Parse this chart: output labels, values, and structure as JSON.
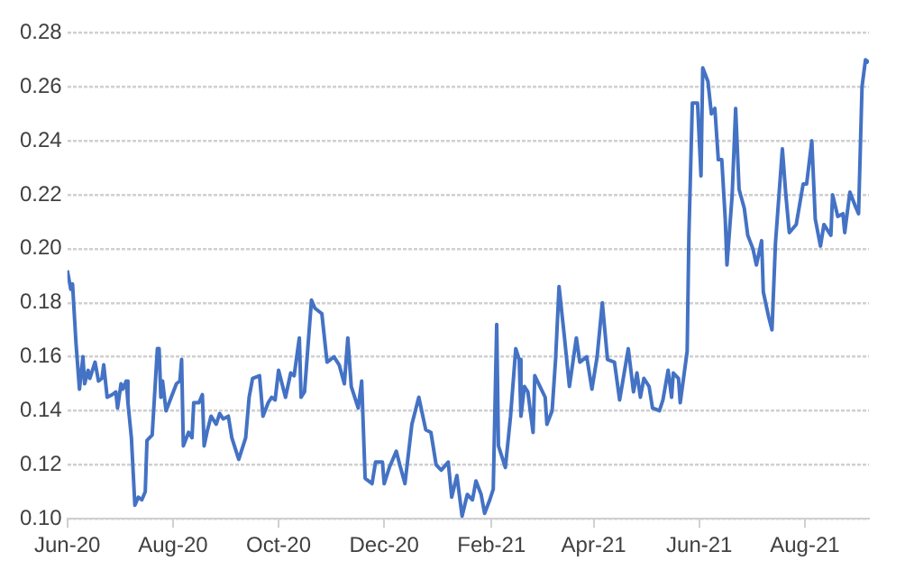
{
  "chart_data": {
    "type": "line",
    "grid": "y",
    "marker": "none",
    "line_style": "solid",
    "legend": false,
    "xlim": [
      "2020-06-01",
      "2021-09-07"
    ],
    "xticks": [
      {
        "value": "2020-06-01",
        "label": "Jun-20"
      },
      {
        "value": "2020-08-01",
        "label": "Aug-20"
      },
      {
        "value": "2020-10-01",
        "label": "Oct-20"
      },
      {
        "value": "2020-12-01",
        "label": "Dec-20"
      },
      {
        "value": "2021-02-01",
        "label": "Feb-21"
      },
      {
        "value": "2021-04-01",
        "label": "Apr-21"
      },
      {
        "value": "2021-06-01",
        "label": "Jun-21"
      },
      {
        "value": "2021-08-01",
        "label": "Aug-21"
      }
    ],
    "ylim": [
      0.1,
      0.28
    ],
    "yticks": [
      {
        "value": 0.1,
        "label": "0.10"
      },
      {
        "value": 0.12,
        "label": "0.12"
      },
      {
        "value": 0.14,
        "label": "0.14"
      },
      {
        "value": 0.16,
        "label": "0.16"
      },
      {
        "value": 0.18,
        "label": "0.18"
      },
      {
        "value": 0.2,
        "label": "0.20"
      },
      {
        "value": 0.22,
        "label": "0.22"
      },
      {
        "value": 0.24,
        "label": "0.24"
      },
      {
        "value": 0.26,
        "label": "0.26"
      },
      {
        "value": 0.28,
        "label": "0.28"
      }
    ],
    "x": [
      "2020-06-01",
      "2020-06-03",
      "2020-06-04",
      "2020-06-06",
      "2020-06-08",
      "2020-06-10",
      "2020-06-11",
      "2020-06-13",
      "2020-06-14",
      "2020-06-17",
      "2020-06-19",
      "2020-06-21",
      "2020-06-22",
      "2020-06-24",
      "2020-06-27",
      "2020-06-29",
      "2020-06-30",
      "2020-07-02",
      "2020-07-03",
      "2020-07-05",
      "2020-07-06",
      "2020-07-08",
      "2020-07-10",
      "2020-07-12",
      "2020-07-14",
      "2020-07-16",
      "2020-07-17",
      "2020-07-20",
      "2020-07-23",
      "2020-07-24",
      "2020-07-25",
      "2020-07-26",
      "2020-07-28",
      "2020-07-31",
      "2020-08-03",
      "2020-08-05",
      "2020-08-06",
      "2020-08-07",
      "2020-08-10",
      "2020-08-12",
      "2020-08-13",
      "2020-08-16",
      "2020-08-18",
      "2020-08-19",
      "2020-08-21",
      "2020-08-23",
      "2020-08-26",
      "2020-08-28",
      "2020-08-30",
      "2020-09-02",
      "2020-09-04",
      "2020-09-06",
      "2020-09-08",
      "2020-09-11",
      "2020-09-12",
      "2020-09-14",
      "2020-09-16",
      "2020-09-20",
      "2020-09-22",
      "2020-09-25",
      "2020-09-27",
      "2020-09-29",
      "2020-10-01",
      "2020-10-03",
      "2020-10-05",
      "2020-10-08",
      "2020-10-10",
      "2020-10-13",
      "2020-10-14",
      "2020-10-16",
      "2020-10-20",
      "2020-10-22",
      "2020-10-26",
      "2020-10-27",
      "2020-10-29",
      "2020-11-02",
      "2020-11-05",
      "2020-11-08",
      "2020-11-10",
      "2020-11-12",
      "2020-11-16",
      "2020-11-18",
      "2020-11-20",
      "2020-11-24",
      "2020-11-26",
      "2020-11-30",
      "2020-12-01",
      "2020-12-04",
      "2020-12-08",
      "2020-12-10",
      "2020-12-13",
      "2020-12-17",
      "2020-12-21",
      "2020-12-25",
      "2020-12-28",
      "2020-12-31",
      "2021-01-03",
      "2021-01-07",
      "2021-01-09",
      "2021-01-12",
      "2021-01-15",
      "2021-01-18",
      "2021-01-21",
      "2021-01-23",
      "2021-01-26",
      "2021-01-28",
      "2021-01-31",
      "2021-02-02",
      "2021-02-04",
      "2021-02-05",
      "2021-02-09",
      "2021-02-12",
      "2021-02-15",
      "2021-02-17",
      "2021-02-18",
      "2021-02-20",
      "2021-02-22",
      "2021-02-25",
      "2021-02-26",
      "2021-03-01",
      "2021-03-04",
      "2021-03-05",
      "2021-03-08",
      "2021-03-10",
      "2021-03-12",
      "2021-03-15",
      "2021-03-18",
      "2021-03-22",
      "2021-03-24",
      "2021-03-28",
      "2021-03-31",
      "2021-04-03",
      "2021-04-06",
      "2021-04-09",
      "2021-04-13",
      "2021-04-16",
      "2021-04-21",
      "2021-04-24",
      "2021-04-26",
      "2021-04-28",
      "2021-04-30",
      "2021-05-03",
      "2021-05-05",
      "2021-05-09",
      "2021-05-11",
      "2021-05-14",
      "2021-05-16",
      "2021-05-17",
      "2021-05-20",
      "2021-05-21",
      "2021-05-25",
      "2021-05-26",
      "2021-05-28",
      "2021-05-31",
      "2021-06-02",
      "2021-06-03",
      "2021-06-06",
      "2021-06-08",
      "2021-06-10",
      "2021-06-12",
      "2021-06-14",
      "2021-06-16",
      "2021-06-17",
      "2021-06-20",
      "2021-06-22",
      "2021-06-24",
      "2021-06-27",
      "2021-06-29",
      "2021-07-02",
      "2021-07-04",
      "2021-07-07",
      "2021-07-08",
      "2021-07-11",
      "2021-07-13",
      "2021-07-15",
      "2021-07-19",
      "2021-07-21",
      "2021-07-23",
      "2021-07-27",
      "2021-07-31",
      "2021-08-02",
      "2021-08-05",
      "2021-08-07",
      "2021-08-10",
      "2021-08-12",
      "2021-08-16",
      "2021-08-17",
      "2021-08-20",
      "2021-08-23",
      "2021-08-24",
      "2021-08-27",
      "2021-08-30",
      "2021-09-01",
      "2021-09-03",
      "2021-09-05",
      "2021-09-07"
    ],
    "series": [
      {
        "color": "#4472c4",
        "values": [
          0.192,
          0.185,
          0.187,
          0.165,
          0.148,
          0.16,
          0.15,
          0.155,
          0.152,
          0.158,
          0.151,
          0.152,
          0.157,
          0.145,
          0.146,
          0.147,
          0.141,
          0.15,
          0.148,
          0.151,
          0.143,
          0.13,
          0.105,
          0.108,
          0.107,
          0.11,
          0.129,
          0.131,
          0.163,
          0.163,
          0.145,
          0.151,
          0.14,
          0.145,
          0.15,
          0.151,
          0.159,
          0.127,
          0.132,
          0.13,
          0.143,
          0.143,
          0.146,
          0.127,
          0.133,
          0.138,
          0.135,
          0.139,
          0.137,
          0.138,
          0.13,
          0.126,
          0.122,
          0.128,
          0.13,
          0.145,
          0.152,
          0.153,
          0.138,
          0.143,
          0.145,
          0.144,
          0.155,
          0.15,
          0.145,
          0.154,
          0.153,
          0.167,
          0.145,
          0.147,
          0.181,
          0.178,
          0.176,
          0.17,
          0.158,
          0.16,
          0.157,
          0.15,
          0.167,
          0.149,
          0.141,
          0.151,
          0.115,
          0.113,
          0.121,
          0.121,
          0.113,
          0.119,
          0.125,
          0.12,
          0.113,
          0.135,
          0.145,
          0.133,
          0.132,
          0.12,
          0.118,
          0.121,
          0.108,
          0.116,
          0.101,
          0.109,
          0.107,
          0.114,
          0.109,
          0.102,
          0.107,
          0.111,
          0.172,
          0.127,
          0.119,
          0.138,
          0.163,
          0.159,
          0.138,
          0.149,
          0.147,
          0.132,
          0.153,
          0.149,
          0.145,
          0.135,
          0.14,
          0.159,
          0.186,
          0.168,
          0.149,
          0.167,
          0.158,
          0.16,
          0.148,
          0.16,
          0.18,
          0.159,
          0.158,
          0.144,
          0.163,
          0.147,
          0.154,
          0.145,
          0.152,
          0.149,
          0.141,
          0.14,
          0.144,
          0.155,
          0.145,
          0.154,
          0.152,
          0.143,
          0.162,
          0.205,
          0.254,
          0.254,
          0.227,
          0.267,
          0.262,
          0.25,
          0.252,
          0.233,
          0.233,
          0.211,
          0.194,
          0.22,
          0.252,
          0.222,
          0.215,
          0.205,
          0.2,
          0.194,
          0.203,
          0.184,
          0.175,
          0.17,
          0.202,
          0.237,
          0.22,
          0.206,
          0.209,
          0.224,
          0.224,
          0.24,
          0.211,
          0.201,
          0.209,
          0.205,
          0.22,
          0.212,
          0.213,
          0.206,
          0.221,
          0.216,
          0.213,
          0.26,
          0.27,
          0.269
        ]
      }
    ]
  }
}
